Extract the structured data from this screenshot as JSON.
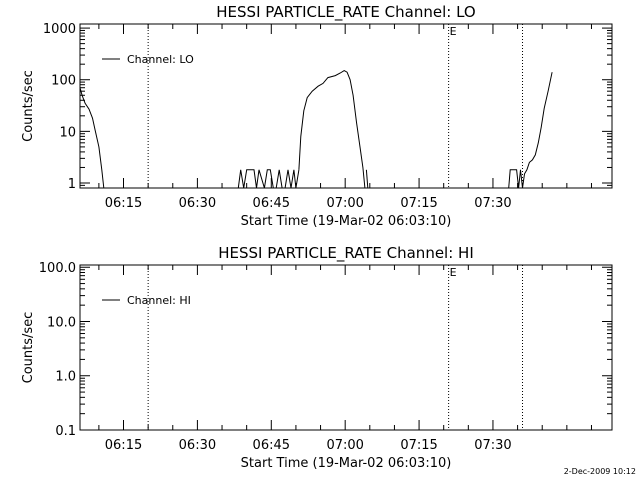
{
  "chart_data": [
    {
      "type": "line",
      "title": "HESSI PARTICLE_RATE Channel: LO",
      "xlabel": "Start Time (19-Mar-02 06:03:10)",
      "ylabel": "Counts/sec",
      "y_scale": "log",
      "xlim_minutes": [
        6.1667,
        114.1667
      ],
      "ylim": [
        0.8,
        1200
      ],
      "yticks": [
        1,
        10,
        100,
        1000
      ],
      "ytick_labels": [
        "1",
        "10",
        "100",
        "1000"
      ],
      "xticks_minutes": [
        15,
        30,
        45,
        60,
        75,
        90
      ],
      "xtick_labels": [
        "06:15",
        "06:30",
        "06:45",
        "07:00",
        "07:15",
        "07:30"
      ],
      "vlines_minutes": [
        20,
        81,
        96
      ],
      "marker_label": "E",
      "legend": "Channel: LO",
      "legend_position": "top-left",
      "series": [
        {
          "name": "Channel: LO",
          "segments": [
            [
              [
                6.17,
                70
              ],
              [
                6.6,
                50
              ],
              [
                7.2,
                35
              ],
              [
                8,
                27
              ],
              [
                8.7,
                18
              ],
              [
                9.3,
                10
              ],
              [
                10,
                5
              ],
              [
                10.6,
                1.8
              ],
              [
                11,
                0.8
              ]
            ],
            [
              [
                38.3,
                0.8
              ],
              [
                38.8,
                1.8
              ],
              [
                39.4,
                0.8
              ],
              [
                40,
                1.8
              ],
              [
                41.5,
                1.8
              ],
              [
                42,
                0.8
              ],
              [
                42.5,
                1.8
              ],
              [
                43.6,
                0.8
              ],
              [
                44.2,
                1.8
              ],
              [
                44.8,
                1.8
              ],
              [
                45.4,
                0.8
              ],
              [
                46,
                0.8
              ],
              [
                46.6,
                1.8
              ],
              [
                47.2,
                0.8
              ],
              [
                47.8,
                0.8
              ],
              [
                48.4,
                1.8
              ],
              [
                49,
                0.8
              ],
              [
                49.6,
                1.8
              ],
              [
                50,
                0.8
              ],
              [
                50.6,
                1.8
              ]
            ],
            [
              [
                50.6,
                1.8
              ],
              [
                51,
                8
              ],
              [
                51.6,
                25
              ],
              [
                52.3,
                45
              ],
              [
                53.3,
                60
              ],
              [
                54.5,
                75
              ],
              [
                55.5,
                85
              ],
              [
                56.5,
                110
              ],
              [
                58,
                120
              ],
              [
                59,
                135
              ],
              [
                59.8,
                150
              ],
              [
                60.4,
                140
              ],
              [
                61,
                100
              ],
              [
                61.6,
                50
              ],
              [
                62.3,
                15
              ],
              [
                63,
                5
              ],
              [
                63.6,
                2
              ],
              [
                64,
                0.8
              ]
            ],
            [
              [
                64.3,
                1.8
              ],
              [
                64.6,
                0.8
              ]
            ],
            [
              [
                93.2,
                0.8
              ],
              [
                93.5,
                1.8
              ],
              [
                94.8,
                1.8
              ],
              [
                95.2,
                0.8
              ],
              [
                95.6,
                1.8
              ],
              [
                96,
                0.8
              ],
              [
                96.4,
                1.5
              ],
              [
                96.9,
                1.8
              ],
              [
                97.4,
                2.5
              ],
              [
                98,
                2.8
              ],
              [
                98.6,
                3.5
              ],
              [
                99.2,
                6
              ],
              [
                99.8,
                12
              ],
              [
                100.4,
                28
              ],
              [
                101.2,
                60
              ],
              [
                102,
                140
              ]
            ]
          ]
        }
      ]
    },
    {
      "type": "line",
      "title": "HESSI PARTICLE_RATE Channel: HI",
      "xlabel": "Start Time (19-Mar-02 06:03:10)",
      "ylabel": "Counts/sec",
      "y_scale": "log",
      "xlim_minutes": [
        6.1667,
        114.1667
      ],
      "ylim": [
        0.1,
        110
      ],
      "yticks": [
        0.1,
        1,
        10,
        100
      ],
      "ytick_labels": [
        "0.1",
        "1.0",
        "10.0",
        "100.0"
      ],
      "xticks_minutes": [
        15,
        30,
        45,
        60,
        75,
        90
      ],
      "xtick_labels": [
        "06:15",
        "06:30",
        "06:45",
        "07:00",
        "07:15",
        "07:30"
      ],
      "vlines_minutes": [
        20,
        81,
        96
      ],
      "marker_label": "E",
      "legend": "Channel: HI",
      "legend_position": "top-left",
      "series": [
        {
          "name": "Channel: HI",
          "segments": []
        }
      ]
    }
  ],
  "footer": {
    "timestamp": "2-Dec-2009 10:12"
  }
}
